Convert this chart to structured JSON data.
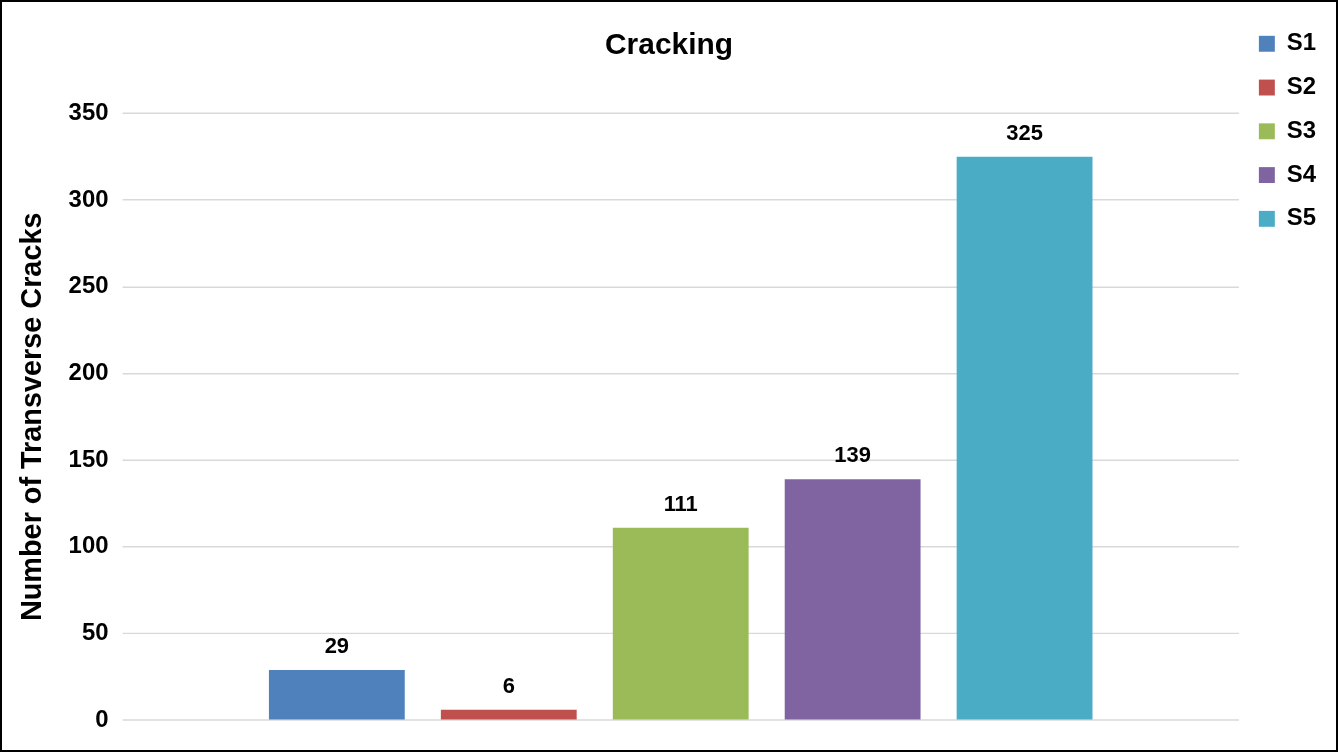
{
  "chart_data": {
    "type": "bar",
    "title": "Cracking",
    "ylabel": "Number of Transverse Cracks",
    "categories": [
      null
    ],
    "series": [
      {
        "name": "S1",
        "color": "#4f81bd",
        "values": [
          29
        ]
      },
      {
        "name": "S2",
        "color": "#c0504d",
        "values": [
          6
        ]
      },
      {
        "name": "S3",
        "color": "#9bbb59",
        "values": [
          111
        ]
      },
      {
        "name": "S4",
        "color": "#8064a2",
        "values": [
          139
        ]
      },
      {
        "name": "S5",
        "color": "#4bacc6",
        "values": [
          325
        ]
      }
    ],
    "ylim": [
      0,
      350
    ],
    "yticks": [
      0,
      50,
      100,
      150,
      200,
      250,
      300,
      350
    ],
    "grid": "y",
    "legend": "right",
    "data_labels": true,
    "tick_labels": "y"
  }
}
